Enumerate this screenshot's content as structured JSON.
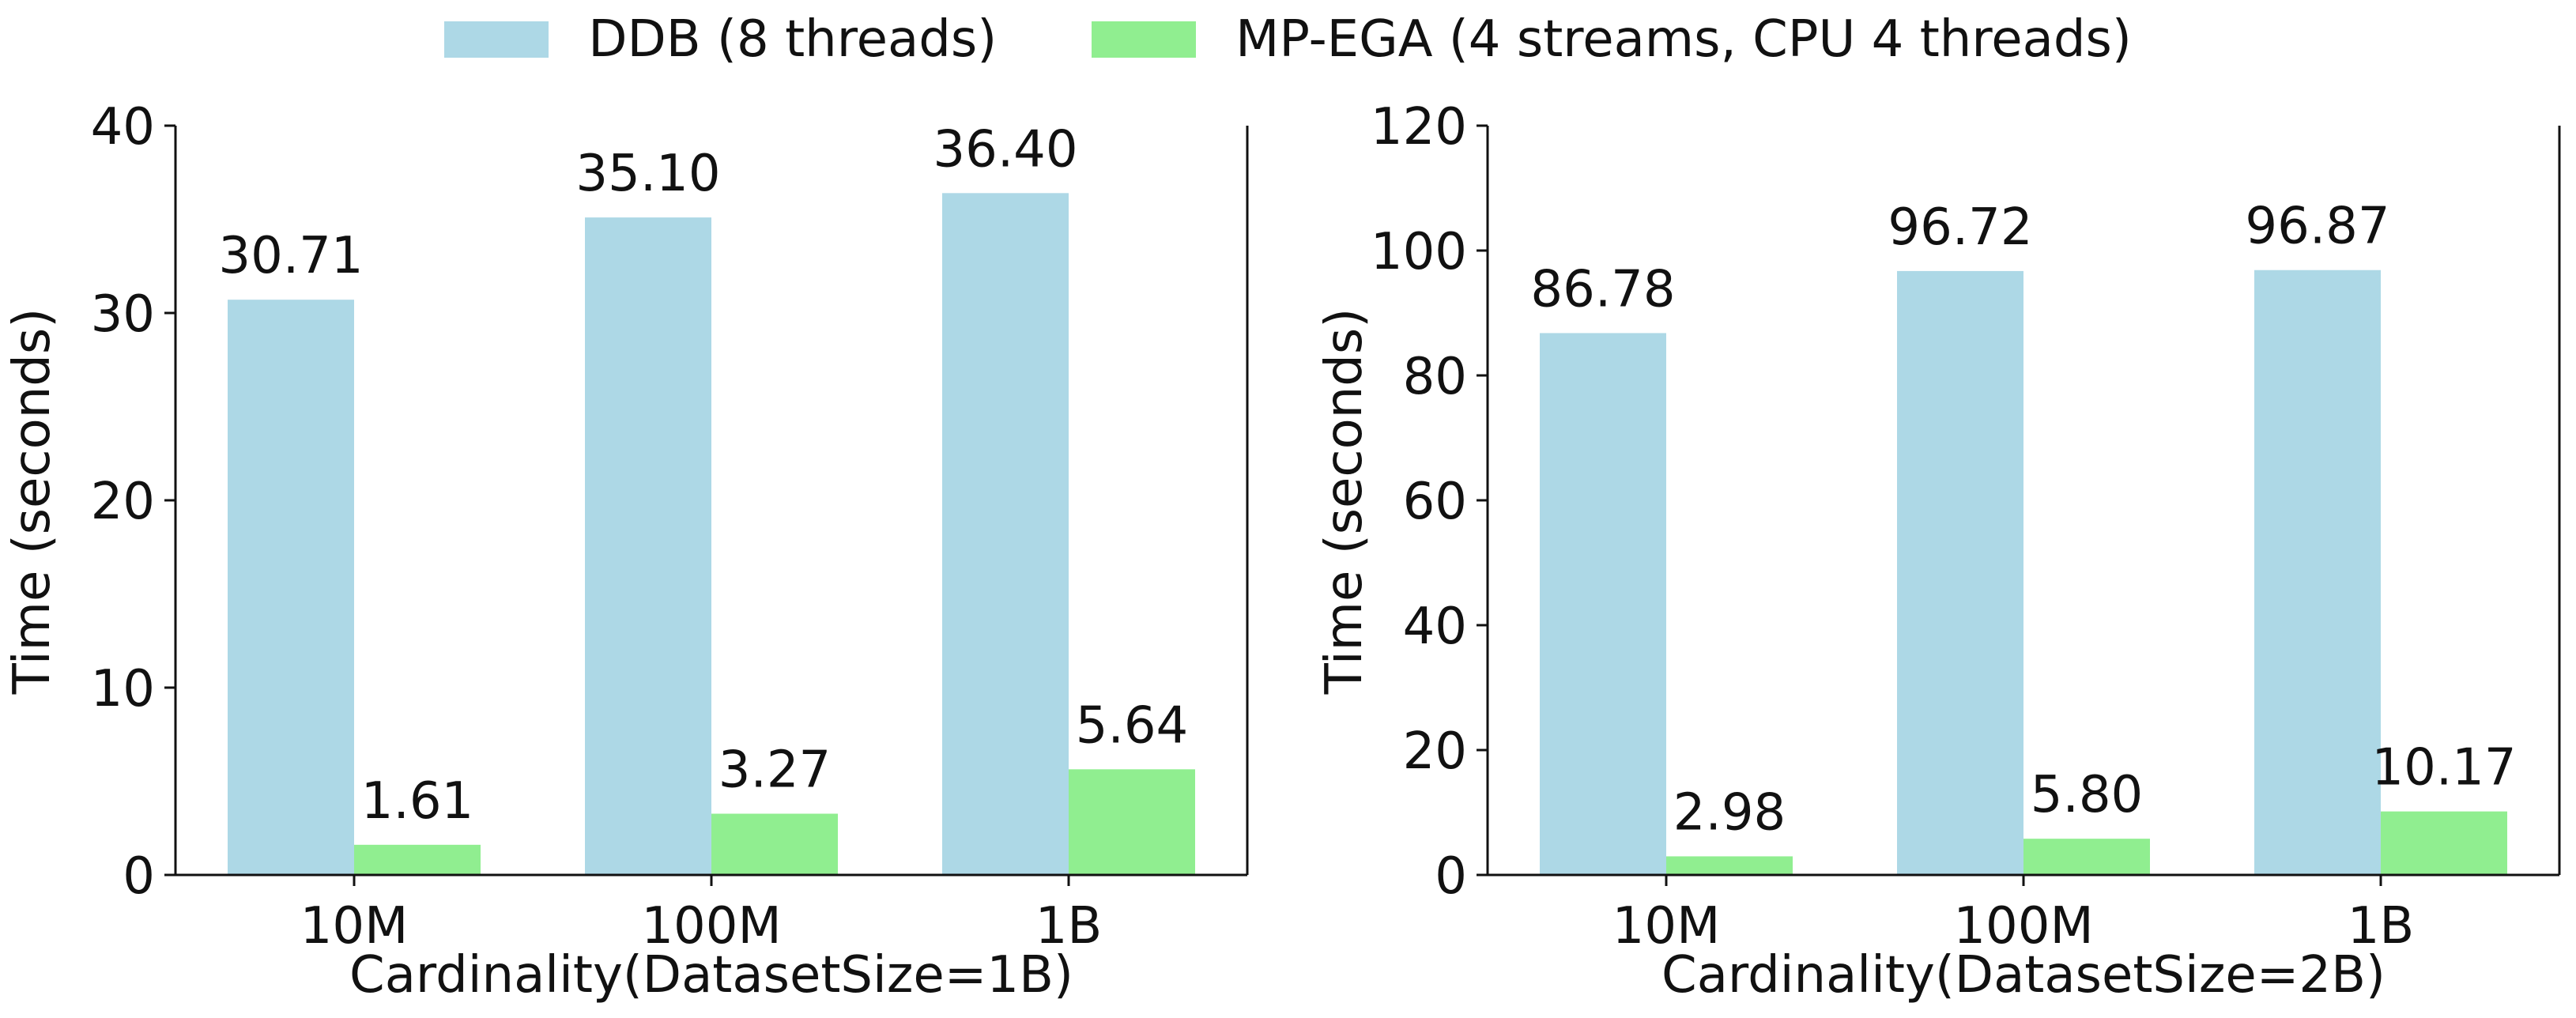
{
  "legend": {
    "position": "top-center",
    "entries": [
      {
        "label": "DDB (8 threads)",
        "color": "#add8e6"
      },
      {
        "label": "MP-EGA (4 streams, CPU 4 threads)",
        "color": "#90ee90"
      }
    ]
  },
  "chart_data": [
    {
      "type": "bar",
      "title": "",
      "xlabel": "Cardinality(DatasetSize=1B)",
      "ylabel": "Time (seconds)",
      "ylim": [
        0,
        40
      ],
      "yticks": [
        "0",
        "10",
        "20",
        "30",
        "40"
      ],
      "grid": false,
      "categories": [
        "10M",
        "100M",
        "1B"
      ],
      "series": [
        {
          "name": "DDB (8 threads)",
          "color": "#add8e6",
          "values": [
            30.71,
            35.1,
            36.4
          ],
          "labels": [
            "30.71",
            "35.10",
            "36.40"
          ]
        },
        {
          "name": "MP-EGA (4 streams, CPU 4 threads)",
          "color": "#90ee90",
          "values": [
            1.61,
            3.27,
            5.64
          ],
          "labels": [
            "1.61",
            "3.27",
            "5.64"
          ]
        }
      ]
    },
    {
      "type": "bar",
      "title": "",
      "xlabel": "Cardinality(DatasetSize=2B)",
      "ylabel": "Time (seconds)",
      "ylim": [
        0,
        120
      ],
      "yticks": [
        "0",
        "20",
        "40",
        "60",
        "80",
        "100",
        "120"
      ],
      "grid": false,
      "categories": [
        "10M",
        "100M",
        "1B"
      ],
      "series": [
        {
          "name": "DDB (8 threads)",
          "color": "#add8e6",
          "values": [
            86.78,
            96.72,
            96.87
          ],
          "labels": [
            "86.78",
            "96.72",
            "96.87"
          ]
        },
        {
          "name": "MP-EGA (4 streams, CPU 4 threads)",
          "color": "#90ee90",
          "values": [
            2.98,
            5.8,
            10.17
          ],
          "labels": [
            "2.98",
            "5.80",
            "10.17"
          ]
        }
      ]
    }
  ]
}
